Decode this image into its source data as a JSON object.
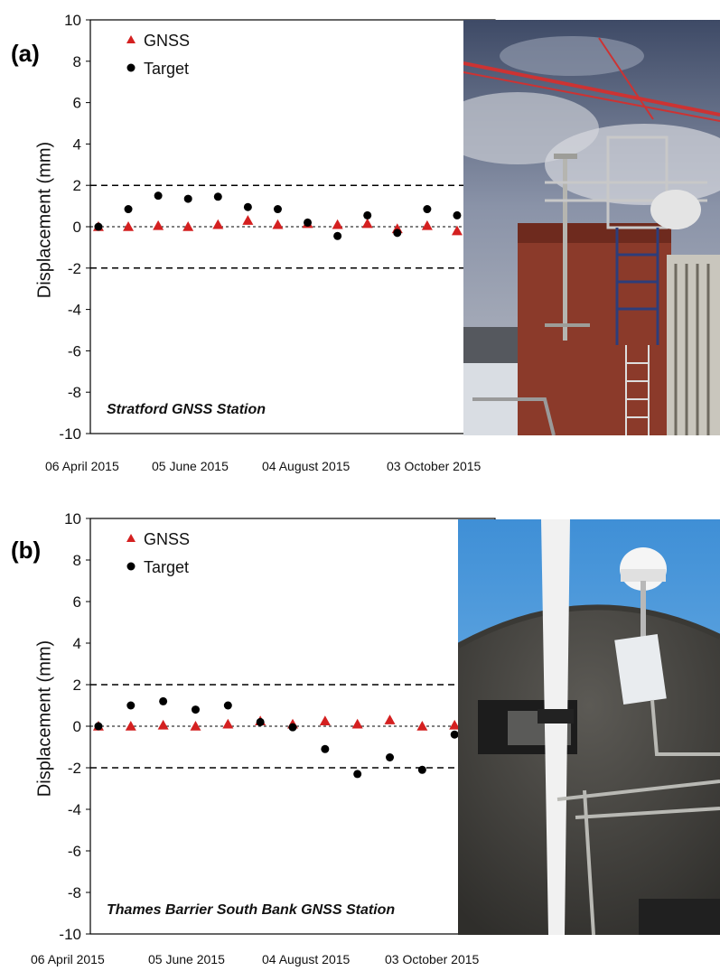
{
  "chart_data": [
    {
      "type": "scatter",
      "panel_label": "(a)",
      "ylabel": "Displacement (mm)",
      "ylim": [
        -10,
        10
      ],
      "yticks": [
        10,
        8,
        6,
        4,
        2,
        0,
        -2,
        -4,
        -6,
        -8,
        -10
      ],
      "xtick_labels": [
        "06 April 2015",
        "05 June 2015",
        "04 August 2015",
        "03 October 2015"
      ],
      "annotation": "Stratford GNSS Station",
      "threshold_lines": [
        2,
        0,
        -2
      ],
      "legend_position": "top-left",
      "grid": false,
      "series": [
        {
          "name": "GNSS",
          "marker": "triangle",
          "color": "#d42020",
          "x": [
            "2015-04-06",
            "2015-04-16",
            "2015-04-26",
            "2015-05-06",
            "2015-05-16",
            "2015-05-26",
            "2015-06-05",
            "2015-06-15",
            "2015-06-25",
            "2015-07-05",
            "2015-07-15",
            "2015-07-25",
            "2015-08-04"
          ],
          "y": [
            0.0,
            0.0,
            0.05,
            0.0,
            0.1,
            0.3,
            0.1,
            0.15,
            0.1,
            0.15,
            -0.1,
            0.05,
            -0.2
          ]
        },
        {
          "name": "Target",
          "marker": "circle",
          "color": "#000000",
          "x": [
            "2015-04-06",
            "2015-04-16",
            "2015-04-26",
            "2015-05-06",
            "2015-05-16",
            "2015-05-26",
            "2015-06-05",
            "2015-06-15",
            "2015-06-25",
            "2015-07-05",
            "2015-07-15",
            "2015-07-25",
            "2015-08-04",
            "2015-08-14"
          ],
          "y": [
            0.0,
            0.85,
            1.5,
            1.35,
            1.45,
            0.95,
            0.85,
            0.2,
            -0.45,
            0.55,
            -0.3,
            0.85,
            0.55,
            null
          ]
        }
      ]
    },
    {
      "type": "scatter",
      "panel_label": "(b)",
      "ylabel": "Displacement (mm)",
      "ylim": [
        -10,
        10
      ],
      "yticks": [
        10,
        8,
        6,
        4,
        2,
        0,
        -2,
        -4,
        -6,
        -8,
        -10
      ],
      "xtick_labels": [
        "06 April 2015",
        "05 June 2015",
        "04 August 2015",
        "03 October 2015"
      ],
      "annotation": "Thames Barrier South Bank GNSS Station",
      "threshold_lines": [
        2,
        0,
        -2
      ],
      "legend_position": "top-left",
      "grid": false,
      "series": [
        {
          "name": "GNSS",
          "marker": "triangle",
          "color": "#d42020",
          "x": [
            "2015-04-06",
            "2015-04-16",
            "2015-04-26",
            "2015-05-06",
            "2015-05-16",
            "2015-05-26",
            "2015-06-05",
            "2015-06-15",
            "2015-06-25",
            "2015-07-05",
            "2015-07-15",
            "2015-07-25",
            "2015-08-04"
          ],
          "y": [
            0.0,
            0.0,
            0.05,
            0.0,
            0.1,
            0.25,
            0.1,
            0.25,
            0.1,
            0.3,
            0.0,
            0.05,
            -0.15
          ]
        },
        {
          "name": "Target",
          "marker": "circle",
          "color": "#000000",
          "x": [
            "2015-04-06",
            "2015-04-16",
            "2015-04-26",
            "2015-05-06",
            "2015-05-16",
            "2015-05-26",
            "2015-06-05",
            "2015-06-15",
            "2015-06-25",
            "2015-07-05",
            "2015-07-15",
            "2015-07-25",
            "2015-08-04"
          ],
          "y": [
            0.0,
            1.0,
            1.2,
            0.8,
            1.0,
            0.2,
            -0.05,
            -1.1,
            -2.3,
            -1.5,
            -2.1,
            -0.4,
            -0.7
          ]
        }
      ]
    }
  ],
  "photos": [
    {
      "subject": "rooftop-gnss-antenna-mast-with-crane-and-cloudy-sky"
    },
    {
      "subject": "gnss-dome-antenna-on-concrete-dome-with-white-pole"
    }
  ],
  "colors": {
    "gnss": "#d42020",
    "target": "#000000",
    "axis": "#000000",
    "dashed": "#000000"
  }
}
